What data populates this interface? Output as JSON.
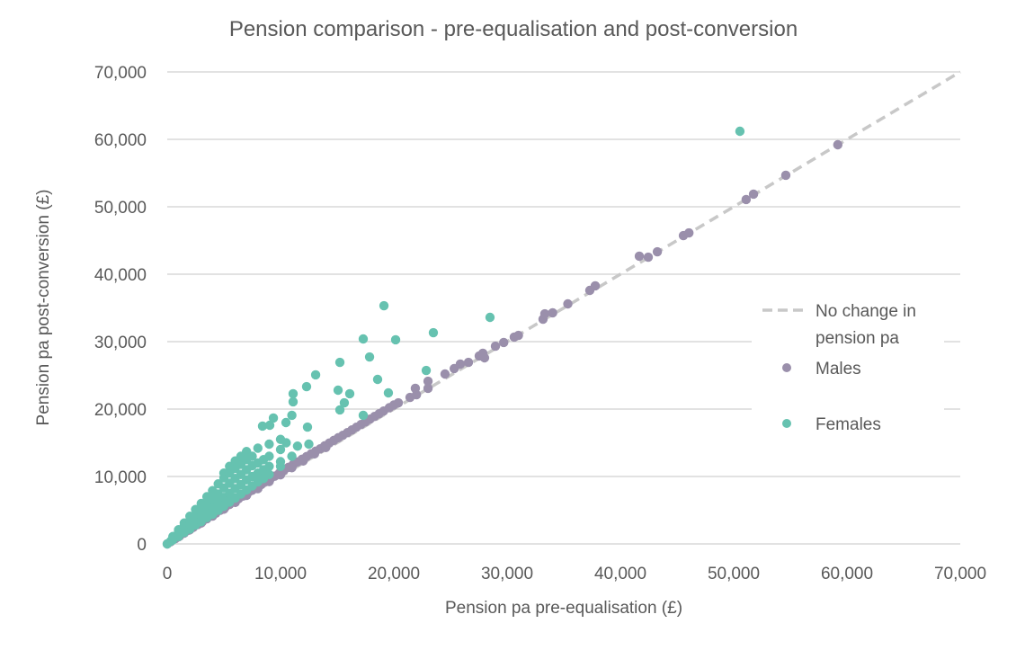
{
  "chart_data": {
    "type": "scatter",
    "title": "Pension comparison - pre-equalisation and post-conversion",
    "xlabel": "Pension pa pre-equalisation (£)",
    "ylabel": "Pension pa post-conversion (£)",
    "xlim": [
      0,
      70000
    ],
    "ylim": [
      0,
      70000
    ],
    "x_ticks": [
      0,
      10000,
      20000,
      30000,
      40000,
      50000,
      60000,
      70000
    ],
    "x_tick_labels": [
      "0",
      "10,000",
      "20,000",
      "30,000",
      "40,000",
      "50,000",
      "60,000",
      "70,000"
    ],
    "y_ticks": [
      0,
      10000,
      20000,
      30000,
      40000,
      50000,
      60000,
      70000
    ],
    "y_tick_labels": [
      "0",
      "10,000",
      "20,000",
      "30,000",
      "40,000",
      "50,000",
      "60,000",
      "70,000"
    ],
    "grid": "horizontal",
    "legend_position": "right",
    "reference_line": {
      "name": "No change in pension pa",
      "name_lines": [
        "No change in",
        "pension pa"
      ],
      "from": [
        0,
        0
      ],
      "to": [
        70000,
        70000
      ],
      "style": "dashed",
      "color": "#c8c8c8"
    },
    "series": [
      {
        "name": "Males",
        "color": "#9a8fab",
        "points": [
          [
            0,
            0
          ],
          [
            300,
            320
          ],
          [
            700,
            760
          ],
          [
            1100,
            1180
          ],
          [
            1500,
            1600
          ],
          [
            1900,
            2030
          ],
          [
            2300,
            2460
          ],
          [
            2700,
            2880
          ],
          [
            3100,
            3300
          ],
          [
            3500,
            3730
          ],
          [
            3900,
            4150
          ],
          [
            4300,
            4560
          ],
          [
            4700,
            5000
          ],
          [
            5100,
            5420
          ],
          [
            5500,
            5850
          ],
          [
            5900,
            6250
          ],
          [
            6300,
            6700
          ],
          [
            6700,
            7100
          ],
          [
            7100,
            7550
          ],
          [
            7500,
            7950
          ],
          [
            7900,
            8400
          ],
          [
            8300,
            8800
          ],
          [
            8700,
            9250
          ],
          [
            9100,
            9650
          ],
          [
            9500,
            10050
          ],
          [
            9900,
            10500
          ],
          [
            10300,
            10900
          ],
          [
            10700,
            11350
          ],
          [
            11100,
            11750
          ],
          [
            11500,
            12150
          ],
          [
            11900,
            12550
          ],
          [
            12300,
            12950
          ],
          [
            12700,
            13350
          ],
          [
            13100,
            13750
          ],
          [
            13500,
            14100
          ],
          [
            13900,
            14550
          ],
          [
            14300,
            14950
          ],
          [
            14700,
            15350
          ],
          [
            15100,
            15750
          ],
          [
            15500,
            16100
          ],
          [
            15900,
            16500
          ],
          [
            16300,
            16900
          ],
          [
            16700,
            17300
          ],
          [
            17100,
            17700
          ],
          [
            17500,
            18100
          ],
          [
            17900,
            18500
          ],
          [
            18300,
            18900
          ],
          [
            18700,
            19300
          ],
          [
            19100,
            19700
          ],
          [
            19600,
            20200
          ],
          [
            20000,
            20600
          ],
          [
            20400,
            20930
          ],
          [
            21430,
            21730
          ],
          [
            22000,
            22130
          ],
          [
            21900,
            23070
          ],
          [
            23020,
            23070
          ],
          [
            23020,
            24130
          ],
          [
            24520,
            25200
          ],
          [
            25330,
            26000
          ],
          [
            25870,
            26670
          ],
          [
            26590,
            26930
          ],
          [
            27540,
            27870
          ],
          [
            28010,
            27600
          ],
          [
            27860,
            28270
          ],
          [
            28970,
            29330
          ],
          [
            29700,
            29870
          ],
          [
            30630,
            30670
          ],
          [
            31000,
            30930
          ],
          [
            33170,
            33330
          ],
          [
            33330,
            34130
          ],
          [
            34020,
            34270
          ],
          [
            35360,
            35600
          ],
          [
            37300,
            37600
          ],
          [
            37780,
            38270
          ],
          [
            41670,
            42670
          ],
          [
            42460,
            42530
          ],
          [
            43260,
            43330
          ],
          [
            45560,
            45730
          ],
          [
            46050,
            46130
          ],
          [
            51100,
            51070
          ],
          [
            51750,
            51870
          ],
          [
            54600,
            54670
          ],
          [
            59190,
            59200
          ],
          [
            2000,
            2100
          ],
          [
            4000,
            4120
          ],
          [
            6000,
            6150
          ],
          [
            8000,
            8200
          ],
          [
            10000,
            10250
          ],
          [
            12000,
            12300
          ],
          [
            14000,
            14300
          ],
          [
            5000,
            5150
          ],
          [
            7000,
            7200
          ],
          [
            9000,
            9250
          ],
          [
            11000,
            11300
          ],
          [
            13000,
            13350
          ],
          [
            3000,
            3100
          ],
          [
            1000,
            1050
          ]
        ]
      },
      {
        "name": "Females",
        "color": "#66c2b0",
        "points": [
          [
            0,
            0
          ],
          [
            300,
            400
          ],
          [
            500,
            600
          ],
          [
            500,
            900
          ],
          [
            500,
            1100
          ],
          [
            1000,
            1100
          ],
          [
            1000,
            1500
          ],
          [
            1000,
            1900
          ],
          [
            1000,
            2100
          ],
          [
            1500,
            1700
          ],
          [
            1500,
            2200
          ],
          [
            1500,
            2700
          ],
          [
            1500,
            3100
          ],
          [
            2000,
            2200
          ],
          [
            2000,
            2900
          ],
          [
            2000,
            3500
          ],
          [
            2000,
            4100
          ],
          [
            2500,
            2800
          ],
          [
            2500,
            3500
          ],
          [
            2500,
            4200
          ],
          [
            2500,
            5100
          ],
          [
            3000,
            3300
          ],
          [
            3000,
            4100
          ],
          [
            3000,
            5000
          ],
          [
            3000,
            6000
          ],
          [
            3500,
            3900
          ],
          [
            3500,
            4800
          ],
          [
            3500,
            5800
          ],
          [
            3500,
            7000
          ],
          [
            4000,
            4400
          ],
          [
            4000,
            5500
          ],
          [
            4000,
            6600
          ],
          [
            4000,
            7900
          ],
          [
            4500,
            5000
          ],
          [
            4500,
            6200
          ],
          [
            4500,
            7400
          ],
          [
            4500,
            8900
          ],
          [
            5000,
            5600
          ],
          [
            5000,
            6900
          ],
          [
            5000,
            8300
          ],
          [
            5000,
            9800
          ],
          [
            5000,
            10500
          ],
          [
            5500,
            6200
          ],
          [
            5500,
            7500
          ],
          [
            5500,
            9000
          ],
          [
            5500,
            10500
          ],
          [
            5500,
            11500
          ],
          [
            6000,
            6800
          ],
          [
            6000,
            8200
          ],
          [
            6000,
            9700
          ],
          [
            6000,
            11200
          ],
          [
            6000,
            12300
          ],
          [
            6500,
            7400
          ],
          [
            6500,
            8800
          ],
          [
            6500,
            10300
          ],
          [
            6500,
            11800
          ],
          [
            6500,
            13000
          ],
          [
            7000,
            8000
          ],
          [
            7000,
            9500
          ],
          [
            7000,
            11000
          ],
          [
            7000,
            12500
          ],
          [
            7000,
            13700
          ],
          [
            7500,
            8600
          ],
          [
            7500,
            10000
          ],
          [
            7500,
            11600
          ],
          [
            7500,
            13000
          ],
          [
            8000,
            9200
          ],
          [
            8000,
            10500
          ],
          [
            8000,
            12000
          ],
          [
            8000,
            14200
          ],
          [
            8500,
            9700
          ],
          [
            8500,
            11000
          ],
          [
            8500,
            12500
          ],
          [
            9000,
            10300
          ],
          [
            9000,
            11500
          ],
          [
            9000,
            13000
          ],
          [
            9000,
            14800
          ],
          [
            10000,
            11500
          ],
          [
            10000,
            12200
          ],
          [
            10000,
            14000
          ],
          [
            10000,
            15500
          ],
          [
            8410,
            17470
          ],
          [
            9050,
            17600
          ],
          [
            9370,
            18670
          ],
          [
            10480,
            18000
          ],
          [
            11000,
            19070
          ],
          [
            11110,
            22270
          ],
          [
            11110,
            21070
          ],
          [
            12380,
            17330
          ],
          [
            12300,
            23330
          ],
          [
            13100,
            25070
          ],
          [
            15240,
            26930
          ],
          [
            15080,
            22800
          ],
          [
            16110,
            22270
          ],
          [
            15630,
            20930
          ],
          [
            15240,
            19870
          ],
          [
            17300,
            19070
          ],
          [
            17300,
            30400
          ],
          [
            17860,
            27730
          ],
          [
            18570,
            24400
          ],
          [
            19130,
            35330
          ],
          [
            19520,
            22400
          ],
          [
            20160,
            30270
          ],
          [
            22860,
            25730
          ],
          [
            23490,
            31330
          ],
          [
            28490,
            33600
          ],
          [
            50550,
            61200
          ],
          [
            11500,
            14500
          ],
          [
            12500,
            14800
          ],
          [
            11000,
            13000
          ],
          [
            10500,
            15000
          ]
        ]
      }
    ]
  }
}
